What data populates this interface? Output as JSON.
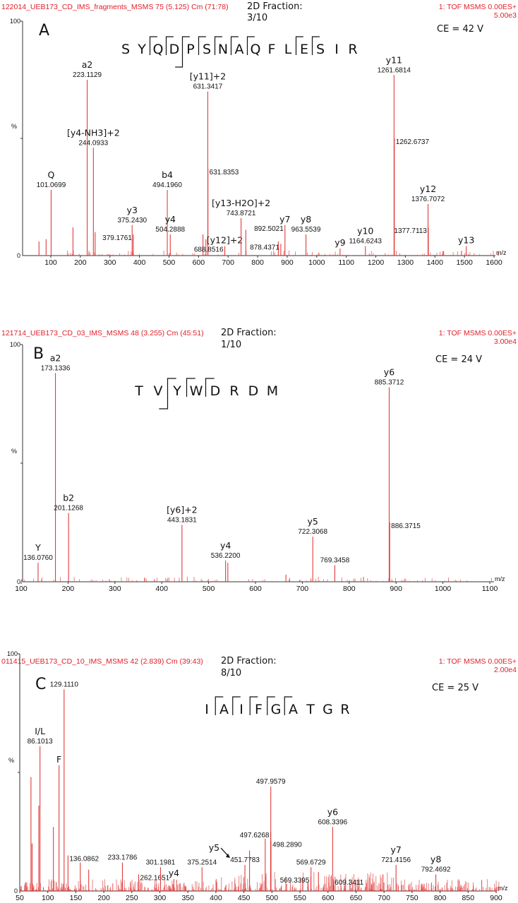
{
  "panels": [
    {
      "letter": "A",
      "file": "122014_UEB173_CD_IMS_fragments_MSMS 75 (5.125) Cm (71:78)",
      "fraction_label": "2D Fraction:",
      "fraction": "3/10",
      "instrument": "1: TOF MSMS 0.00ES+",
      "scale": "5.00e3",
      "ce": "CE = 42 V",
      "sequence": {
        "residues": [
          "S",
          "Y",
          "Q",
          "D",
          "P",
          "S",
          "N",
          "A",
          "Q",
          "F",
          "L",
          "E",
          "S",
          "I",
          "R"
        ],
        "cleavages": [
          {
            "after": 1,
            "type": "y"
          },
          {
            "after": 2,
            "type": "y"
          },
          {
            "after": 3,
            "type": "by"
          },
          {
            "after": 4,
            "type": "y"
          },
          {
            "after": 5,
            "type": "y"
          },
          {
            "after": 6,
            "type": "y"
          },
          {
            "after": 7,
            "type": "y"
          },
          {
            "after": 10,
            "type": "y"
          },
          {
            "after": 11,
            "type": "y"
          }
        ]
      }
    },
    {
      "letter": "B",
      "file": "121714_UEB173_CD_03_IMS_MSMS 48 (3.255) Cm (45:51)",
      "fraction_label": "2D Fraction:",
      "fraction": "1/10",
      "instrument": "1: TOF MSMS 0.00ES+",
      "scale": "3.00e4",
      "ce": "CE = 24 V",
      "sequence": {
        "residues": [
          "T",
          "V",
          "Y",
          "W",
          "D",
          "R",
          "D",
          "M"
        ],
        "cleavages": [
          {
            "after": 1,
            "type": "by"
          },
          {
            "after": 2,
            "type": "y"
          },
          {
            "after": 3,
            "type": "y"
          }
        ]
      }
    },
    {
      "letter": "C",
      "file": "011415_UEB173_CD_10_IMS_MSMS 42 (2.839) Cm (39:43)",
      "fraction_label": "2D Fraction:",
      "fraction": "8/10",
      "instrument": "1: TOF MSMS 0.00ES+",
      "scale": "2.00e4",
      "ce": "CE = 25 V",
      "sequence": {
        "residues": [
          "I",
          "A",
          "I",
          "F",
          "G",
          "A",
          "T",
          "G",
          "R"
        ],
        "cleavages": [
          {
            "after": 0,
            "type": "y"
          },
          {
            "after": 1,
            "type": "y"
          },
          {
            "after": 2,
            "type": "y"
          },
          {
            "after": 3,
            "type": "y"
          },
          {
            "after": 4,
            "type": "y"
          }
        ]
      }
    }
  ],
  "chart_data": [
    {
      "type": "bar",
      "xlabel": "m/z",
      "ylabel": "%",
      "ylim": [
        0,
        100
      ],
      "ytick_labels": [
        "0",
        "100"
      ],
      "xlim": [
        60,
        1620
      ],
      "xticks": [
        100,
        200,
        300,
        400,
        500,
        600,
        700,
        800,
        900,
        1000,
        1100,
        1200,
        1300,
        1400,
        1500,
        1600
      ],
      "peak_color": "#e23b3b",
      "peaks": [
        {
          "mz": 60,
          "intensity": 6
        },
        {
          "mz": 84,
          "intensity": 7
        },
        {
          "mz": 101.0699,
          "intensity": 28,
          "label": "101.0699",
          "ion": "Q"
        },
        {
          "mz": 175,
          "intensity": 12
        },
        {
          "mz": 223.1129,
          "intensity": 75,
          "label": "223.1129",
          "ion": "a2"
        },
        {
          "mz": 244.0933,
          "intensity": 46,
          "label": "244.0933",
          "ion": "[y4-NH3]+2"
        },
        {
          "mz": 250,
          "intensity": 10
        },
        {
          "mz": 375.243,
          "intensity": 13,
          "label": "375.2430",
          "ion": "y3"
        },
        {
          "mz": 379.1761,
          "intensity": 9,
          "label": "379.1761"
        },
        {
          "mz": 494.196,
          "intensity": 28,
          "label": "494.1960",
          "ion": "b4"
        },
        {
          "mz": 504.2888,
          "intensity": 9,
          "label": "504.2888",
          "ion": "y4"
        },
        {
          "mz": 615,
          "intensity": 9
        },
        {
          "mz": 625,
          "intensity": 7
        },
        {
          "mz": 631.3417,
          "intensity": 70,
          "label": "631.3417",
          "ion": "[y11]+2"
        },
        {
          "mz": 631.8353,
          "intensity": 37,
          "label": "631.8353"
        },
        {
          "mz": 688.8516,
          "intensity": 4,
          "label": "688.8516",
          "ion": "[y12]+2"
        },
        {
          "mz": 743.8721,
          "intensity": 16,
          "label": "743.8721",
          "ion": "[y13-H2O]+2"
        },
        {
          "mz": 760,
          "intensity": 11
        },
        {
          "mz": 870,
          "intensity": 6
        },
        {
          "mz": 878.4371,
          "intensity": 5,
          "label": "878.4371"
        },
        {
          "mz": 892.5021,
          "intensity": 13,
          "label": "892.5021",
          "ion": "y7"
        },
        {
          "mz": 963.5539,
          "intensity": 9,
          "label": "963.5539",
          "ion": "y8"
        },
        {
          "mz": 1079,
          "intensity": 3,
          "ion": "y9"
        },
        {
          "mz": 1164.6243,
          "intensity": 4,
          "label": "1164.6243",
          "ion": "y10"
        },
        {
          "mz": 1261.6814,
          "intensity": 77,
          "label": "1261.6814",
          "ion": "y11"
        },
        {
          "mz": 1262.6737,
          "intensity": 50,
          "label": "1262.6737"
        },
        {
          "mz": 1376.7072,
          "intensity": 22,
          "label": "1376.7072",
          "ion": "y12"
        },
        {
          "mz": 1377.7113,
          "intensity": 12,
          "label": "1377.7113"
        },
        {
          "mz": 1490,
          "intensity": 2
        },
        {
          "mz": 1506,
          "intensity": 4,
          "ion": "y13"
        }
      ]
    },
    {
      "type": "bar",
      "xlabel": "m/z",
      "ylabel": "%",
      "ylim": [
        0,
        100
      ],
      "ytick_labels": [
        "0",
        "100"
      ],
      "xlim": [
        100,
        1110
      ],
      "xticks": [
        100,
        200,
        300,
        400,
        500,
        600,
        700,
        800,
        900,
        1000,
        1100
      ],
      "peak_color": "#e23b3b",
      "peaks": [
        {
          "mz": 136.076,
          "intensity": 8,
          "label": "136.0760",
          "ion": "Y"
        },
        {
          "mz": 173.1336,
          "intensity": 88,
          "label": "173.1336",
          "ion": "a2"
        },
        {
          "mz": 201.1268,
          "intensity": 29,
          "label": "201.1268",
          "ion": "b2"
        },
        {
          "mz": 443.1831,
          "intensity": 24,
          "label": "443.1831",
          "ion": "[y6]+2"
        },
        {
          "mz": 536.22,
          "intensity": 9,
          "label": "536.2200",
          "ion": "y4"
        },
        {
          "mz": 541,
          "intensity": 8
        },
        {
          "mz": 665,
          "intensity": 3
        },
        {
          "mz": 722.3068,
          "intensity": 19,
          "label": "722.3068",
          "ion": "y5"
        },
        {
          "mz": 769.3458,
          "intensity": 7,
          "label": "769.3458"
        },
        {
          "mz": 885.3712,
          "intensity": 82,
          "label": "885.3712",
          "ion": "y6"
        },
        {
          "mz": 886.3715,
          "intensity": 25,
          "label": "886.3715"
        }
      ]
    },
    {
      "type": "bar",
      "xlabel": "m/z",
      "ylabel": "%",
      "ylim": [
        0,
        100
      ],
      "ytick_labels": [
        "0",
        "100"
      ],
      "xlim": [
        50,
        905
      ],
      "xticks": [
        50,
        100,
        150,
        200,
        250,
        300,
        350,
        400,
        450,
        500,
        550,
        600,
        650,
        700,
        750,
        800,
        850,
        900
      ],
      "peak_color": "#e23b3b",
      "peaks": [
        {
          "mz": 70,
          "intensity": 48
        },
        {
          "mz": 72,
          "intensity": 20
        },
        {
          "mz": 84,
          "intensity": 36
        },
        {
          "mz": 86.1013,
          "intensity": 61,
          "label": "86.1013",
          "ion": "I/L"
        },
        {
          "mz": 110,
          "intensity": 27
        },
        {
          "mz": 120.08,
          "intensity": 53,
          "ion": "F"
        },
        {
          "mz": 129.111,
          "intensity": 85,
          "label": "129.1110"
        },
        {
          "mz": 136.0862,
          "intensity": 15,
          "label": "136.0862"
        },
        {
          "mz": 158,
          "intensity": 12
        },
        {
          "mz": 173,
          "intensity": 9
        },
        {
          "mz": 233.1786,
          "intensity": 12,
          "label": "233.1786"
        },
        {
          "mz": 262.1651,
          "intensity": 7,
          "label": "262.1651"
        },
        {
          "mz": 301.1981,
          "intensity": 10,
          "label": "301.1981"
        },
        {
          "mz": 325,
          "intensity": 5,
          "ion": "y4"
        },
        {
          "mz": 375.2514,
          "intensity": 10,
          "label": "375.2514"
        },
        {
          "mz": 451.7783,
          "intensity": 11,
          "label": "451.7783",
          "ion": "y5",
          "arrow": true
        },
        {
          "mz": 460,
          "intensity": 17
        },
        {
          "mz": 488,
          "intensity": 22
        },
        {
          "mz": 497.6268,
          "intensity": 25,
          "label": "497.6268"
        },
        {
          "mz": 497.9579,
          "intensity": 44,
          "label": "497.9579"
        },
        {
          "mz": 498.289,
          "intensity": 21,
          "label": "498.2890"
        },
        {
          "mz": 569.3395,
          "intensity": 6,
          "label": "569.3395"
        },
        {
          "mz": 569.6729,
          "intensity": 10,
          "label": "569.6729"
        },
        {
          "mz": 583,
          "intensity": 8
        },
        {
          "mz": 608.3396,
          "intensity": 27,
          "label": "608.3396",
          "ion": "y6"
        },
        {
          "mz": 609.3411,
          "intensity": 5,
          "label": "609.3411"
        },
        {
          "mz": 698,
          "intensity": 7
        },
        {
          "mz": 721.4156,
          "intensity": 11,
          "label": "721.4156",
          "ion": "y7"
        },
        {
          "mz": 792.4692,
          "intensity": 7,
          "label": "792.4692",
          "ion": "y8"
        }
      ]
    }
  ]
}
